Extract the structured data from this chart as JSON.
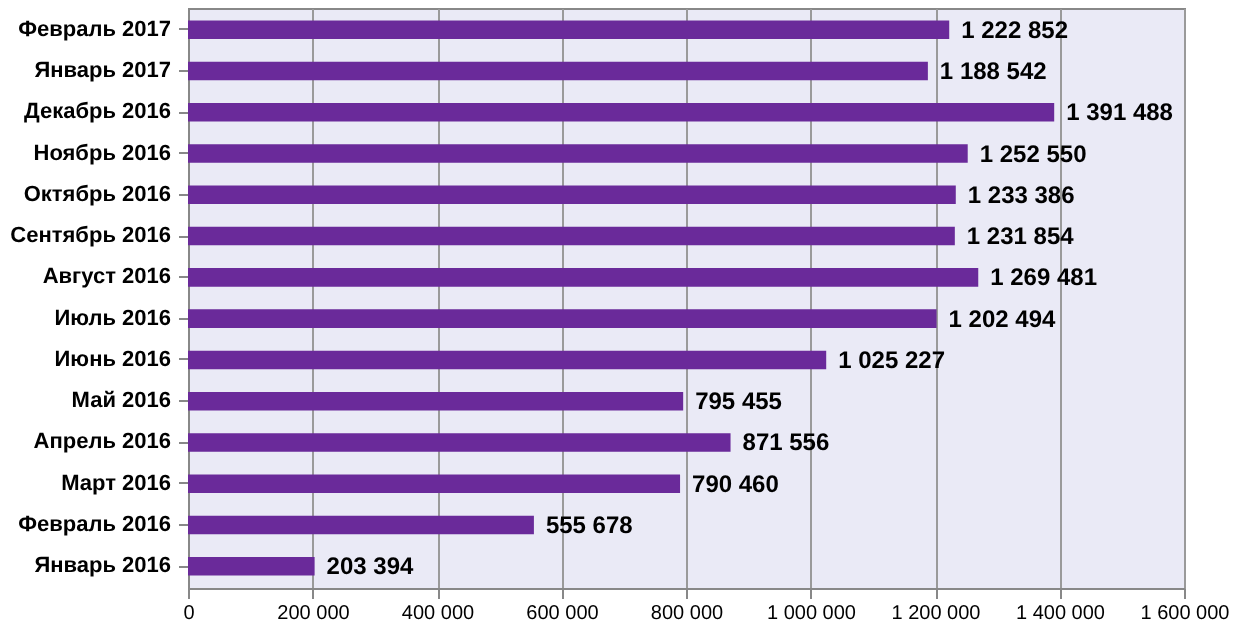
{
  "chart_data": {
    "type": "bar",
    "orientation": "horizontal",
    "categories": [
      "Февраль 2017",
      "Январь 2017",
      "Декабрь 2016",
      "Ноябрь 2016",
      "Октябрь 2016",
      "Сентябрь 2016",
      "Август 2016",
      "Июль 2016",
      "Июнь 2016",
      "Май 2016",
      "Апрель 2016",
      "Март 2016",
      "Февраль 2016",
      "Январь 2016"
    ],
    "values": [
      1222852,
      1188542,
      1391488,
      1252550,
      1233386,
      1231854,
      1269481,
      1202494,
      1025227,
      795455,
      871556,
      790460,
      555678,
      203394
    ],
    "value_labels": [
      "1 222 852",
      "1 188 542",
      "1 391 488",
      "1 252 550",
      "1 233 386",
      "1 231 854",
      "1 269 481",
      "1 202 494",
      "1 025 227",
      "795 455",
      "871 556",
      "790 460",
      "555 678",
      "203 394"
    ],
    "color": "#6a2a9a",
    "xlim": [
      0,
      1600000
    ],
    "xticks": [
      0,
      {
        "value": 200000,
        "label": "200 000"
      },
      {
        "value": 400000,
        "label": "400 000"
      },
      {
        "value": 600000,
        "label": "600 000"
      },
      {
        "value": 800000,
        "label": "800 000"
      },
      {
        "value": 1000000,
        "label": "1 000 000"
      },
      {
        "value": 1200000,
        "label": "1 200 000"
      },
      {
        "value": 1400000,
        "label": "1 400 000"
      },
      {
        "value": 1600000,
        "label": "1 600 000"
      }
    ],
    "grid": "x"
  }
}
